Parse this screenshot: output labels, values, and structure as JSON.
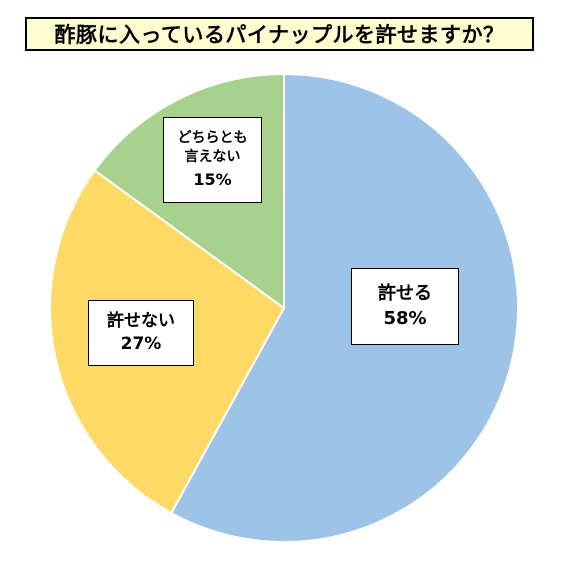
{
  "chart_data": {
    "type": "pie",
    "title": "酢豚に入っているパイナップルを許せますか？",
    "slices": [
      {
        "name": "許せる",
        "value": 58,
        "label": "58%",
        "color": "#9dc3e6"
      },
      {
        "name": "許せない",
        "value": 27,
        "label": "27%",
        "color": "#ffd966"
      },
      {
        "name": "どちらとも言えない",
        "name_lines": [
          "どちらとも",
          "言えない"
        ],
        "value": 15,
        "label": "15%",
        "color": "#a9d18e"
      }
    ],
    "start": "12 o'clock",
    "direction": "clockwise"
  }
}
